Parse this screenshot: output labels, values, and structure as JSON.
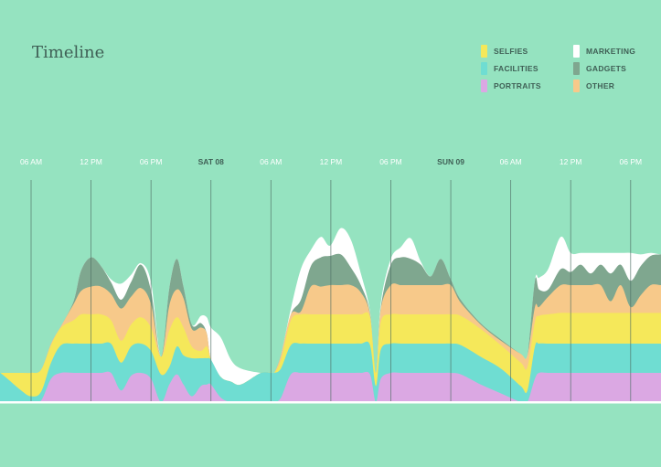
{
  "chart_data": {
    "type": "area",
    "subtype": "streamgraph-stacked",
    "title": "Timeline",
    "grid": "vertical",
    "legend_position": "top-right",
    "background": "#95e3c0",
    "ticks": [
      {
        "label": "06 AM",
        "time": "Fri 07 06:00",
        "day": false
      },
      {
        "label": "12 PM",
        "time": "Fri 07 12:00",
        "day": false
      },
      {
        "label": "06 PM",
        "time": "Fri 07 18:00",
        "day": false
      },
      {
        "label": "SAT 08",
        "time": "Sat 08 00:00",
        "day": true
      },
      {
        "label": "06 AM",
        "time": "Sat 08 06:00",
        "day": false
      },
      {
        "label": "12 PM",
        "time": "Sat 08 12:00",
        "day": false
      },
      {
        "label": "06 PM",
        "time": "Sat 08 18:00",
        "day": false
      },
      {
        "label": "SUN 09",
        "time": "Sun 09 00:00",
        "day": true
      },
      {
        "label": "06 AM",
        "time": "Sun 09 06:00",
        "day": false
      },
      {
        "label": "12 PM",
        "time": "Sun 09 12:00",
        "day": false
      },
      {
        "label": "06 PM",
        "time": "Sun 09 18:00",
        "day": false
      }
    ],
    "x": [
      "Fri 07 02:55",
      "Fri 07 05:00",
      "Fri 07 06:00",
      "Fri 07 07:00",
      "Fri 07 08:00",
      "Fri 07 09:00",
      "Fri 07 10:15",
      "Fri 07 11:00",
      "Fri 07 12:00",
      "Fri 07 13:00",
      "Fri 07 14:00",
      "Fri 07 15:00",
      "Fri 07 16:00",
      "Fri 07 17:00",
      "Fri 07 18:00",
      "Fri 07 19:00",
      "Fri 07 19:50",
      "Fri 07 20:35",
      "Fri 07 21:15",
      "Fri 07 22:05",
      "Fri 07 23:00",
      "Fri 07 23:35",
      "Sat 08 00:00",
      "Sat 08 01:00",
      "Sat 08 02:00",
      "Sat 08 03:00",
      "Sat 08 05:00",
      "Sat 08 06:00",
      "Sat 08 06:20",
      "Sat 08 07:00",
      "Sat 08 08:00",
      "Sat 08 09:00",
      "Sat 08 10:00",
      "Sat 08 11:00",
      "Sat 08 11:55",
      "Sat 08 13:00",
      "Sat 08 14:00",
      "Sat 08 15:00",
      "Sat 08 15:55",
      "Sat 08 16:30",
      "Sat 08 17:00",
      "Sat 08 18:00",
      "Sat 08 19:00",
      "Sat 08 20:00",
      "Sat 08 21:00",
      "Sat 08 22:00",
      "Sat 08 23:00",
      "Sun 09 00:00",
      "Sun 09 01:00",
      "Sun 09 03:00",
      "Sun 09 05:00",
      "Sun 09 07:00",
      "Sun 09 07:40",
      "Sun 09 08:25",
      "Sun 09 08:50",
      "Sun 09 09:45",
      "Sun 09 11:00",
      "Sun 09 12:00",
      "Sun 09 13:00",
      "Sun 09 14:00",
      "Sun 09 15:00",
      "Sun 09 16:00",
      "Sun 09 17:00",
      "Sun 09 18:00",
      "Sun 09 19:00",
      "Sun 09 20:00",
      "Sun 09 21:00"
    ],
    "series": [
      {
        "name": "PORTRAITS",
        "color": "#dba8e3",
        "values": [
          0,
          0,
          0,
          0.5,
          8,
          10,
          10,
          10,
          10,
          10,
          10,
          4,
          9,
          10,
          8,
          0,
          6,
          9.5,
          6,
          2,
          5.5,
          6,
          6,
          1.5,
          0,
          0,
          0,
          0,
          0,
          1.5,
          9.5,
          10,
          10,
          10,
          10,
          10,
          10,
          10,
          9.5,
          0,
          8,
          10,
          10,
          10,
          10,
          10,
          10,
          10,
          9.5,
          6,
          3,
          0,
          0,
          8,
          10,
          10,
          10,
          10,
          10,
          10,
          10,
          10,
          10,
          10,
          10,
          10,
          10
        ]
      },
      {
        "name": "FACILITIES",
        "color": "#6fddd2",
        "values": [
          10,
          4,
          2,
          3,
          5.5,
          9.5,
          10,
          10,
          10,
          10,
          10,
          9.5,
          10,
          10,
          9.5,
          9.5,
          6,
          9.5,
          10,
          13,
          9.5,
          9,
          8.5,
          7,
          7,
          6,
          10,
          10,
          10,
          10,
          10,
          10,
          10,
          10,
          10,
          10,
          10,
          10,
          10,
          5.5,
          10,
          10,
          10,
          10,
          10,
          10,
          10,
          10,
          10,
          9.5,
          8.5,
          5.5,
          4,
          11,
          10,
          10,
          10,
          10,
          10,
          10,
          10,
          10,
          10,
          10,
          10,
          10,
          10
        ]
      },
      {
        "name": "SELFIES",
        "color": "#f5e85a",
        "values": [
          0,
          6,
          8,
          7.5,
          6,
          6,
          8,
          10,
          10,
          10,
          8,
          7.5,
          7.5,
          9,
          8,
          6,
          12.5,
          10,
          9.5,
          4,
          2.5,
          4,
          0,
          0,
          0,
          0,
          0,
          0,
          0,
          3,
          8.5,
          10,
          10,
          10,
          10,
          10,
          10,
          10,
          9.5,
          4.5,
          9.5,
          10,
          10,
          10,
          10,
          10,
          10,
          10,
          10,
          9.5,
          8,
          8,
          8,
          8.5,
          9.5,
          10,
          10.5,
          10.5,
          10.5,
          10.5,
          10.5,
          10.5,
          10.5,
          10.5,
          10.5,
          10.5,
          10.5
        ]
      },
      {
        "name": "OTHER",
        "color": "#f7c98a",
        "values": [
          0,
          0,
          0,
          0,
          0.5,
          0.5,
          5.5,
          8,
          9.5,
          9.5,
          9,
          11,
          9.5,
          10,
          8,
          0,
          8.5,
          9.5,
          10,
          6,
          8,
          4.5,
          0,
          0,
          0,
          0,
          0,
          0,
          0,
          1.5,
          2,
          1,
          9.5,
          9.5,
          10,
          10,
          10,
          7.5,
          1,
          0,
          4.5,
          10,
          10,
          10,
          10,
          10,
          10,
          10,
          4.5,
          1.5,
          1.5,
          3,
          4,
          5,
          3,
          6,
          9.5,
          9.5,
          9.5,
          9.5,
          9.5,
          4,
          9.5,
          2,
          6,
          9.5,
          9.5
        ]
      },
      {
        "name": "GADGETS",
        "color": "#7fa78f",
        "values": [
          0,
          0,
          0,
          0,
          0,
          0,
          1,
          7,
          10,
          7,
          4,
          3,
          5,
          8,
          4.5,
          0,
          6,
          10.5,
          4,
          1.5,
          1.5,
          0,
          0,
          0,
          0,
          0,
          0,
          0,
          0,
          0,
          0,
          4,
          7,
          10,
          10,
          10.5,
          6,
          2.5,
          0.5,
          0,
          0.5,
          7,
          9.5,
          9,
          7,
          3,
          9,
          2,
          1,
          0.5,
          0.5,
          0,
          0,
          9,
          6,
          2.5,
          5.5,
          4.5,
          7,
          4,
          7,
          9.5,
          7,
          9,
          10,
          10,
          10.5
        ]
      },
      {
        "name": "MARKETING",
        "color": "#ffffff",
        "values": [
          0,
          0,
          0,
          0,
          0,
          0,
          0,
          0,
          0,
          0,
          1,
          5.5,
          2.5,
          0.5,
          3,
          0,
          0,
          0,
          0,
          0,
          2.5,
          5.5,
          11,
          13.5,
          7.5,
          5.5,
          0,
          0,
          0,
          0,
          2,
          10.5,
          5.5,
          7,
          3.5,
          9,
          9.5,
          4,
          0.5,
          0,
          1.5,
          2,
          3.5,
          7,
          1,
          0,
          0,
          0,
          0,
          0,
          0,
          0,
          0,
          0,
          4,
          7,
          11,
          6.5,
          4,
          7,
          4,
          7,
          4,
          9.5,
          4,
          1,
          0
        ]
      }
    ],
    "legend": [
      {
        "label": "SELFIES",
        "color": "#f5e85a"
      },
      {
        "label": "MARKETING",
        "color": "#ffffff"
      },
      {
        "label": "FACILITIES",
        "color": "#6fddd2"
      },
      {
        "label": "GADGETS",
        "color": "#7fa78f"
      },
      {
        "label": "PORTRAITS",
        "color": "#dba8e3"
      },
      {
        "label": "OTHER",
        "color": "#f7c98a"
      }
    ]
  }
}
